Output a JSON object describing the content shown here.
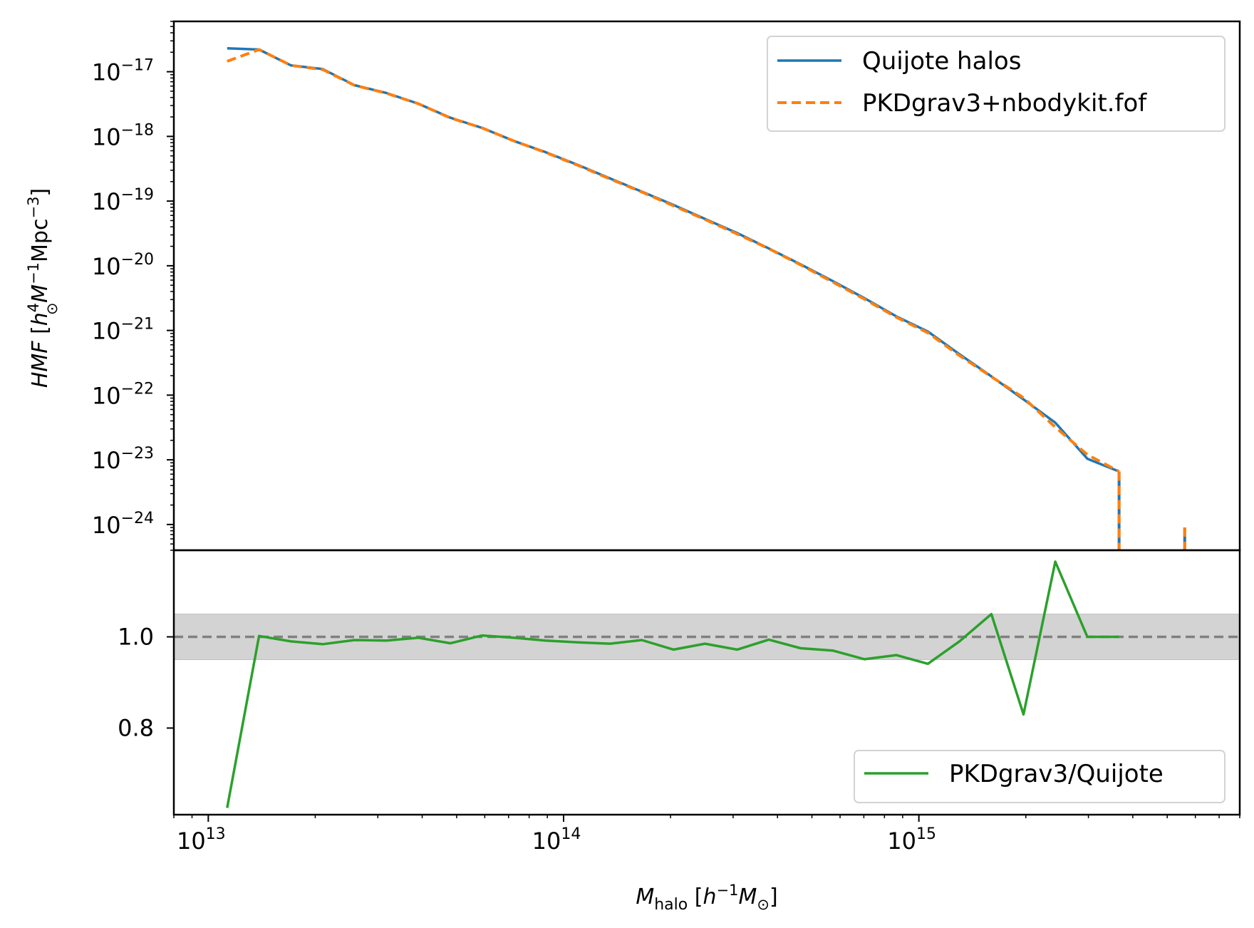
{
  "chart_data": [
    {
      "type": "line",
      "panel": "top",
      "xscale": "log",
      "yscale": "log",
      "xlim": [
        8000000000000.0,
        8000000000000000.0
      ],
      "ylim": [
        4e-25,
        6e-17
      ],
      "y_ticks": [
        1e-17,
        1e-18,
        1e-19,
        1e-20,
        1e-21,
        1e-22,
        1e-23,
        1e-24
      ],
      "y_tick_labels": [
        {
          "base": "10",
          "exp": "−17"
        },
        {
          "base": "10",
          "exp": "−18"
        },
        {
          "base": "10",
          "exp": "−19"
        },
        {
          "base": "10",
          "exp": "−20"
        },
        {
          "base": "10",
          "exp": "−21"
        },
        {
          "base": "10",
          "exp": "−22"
        },
        {
          "base": "10",
          "exp": "−23"
        },
        {
          "base": "10",
          "exp": "−24"
        }
      ],
      "ylabel": {
        "italic": "HMF",
        "pre": " [",
        "h": "h",
        "h_exp": "4",
        "M": "M",
        "sun": "⊙",
        "M_exp": "−1",
        "mpc": "Mpc",
        "mpc_exp": "−3",
        "close": "]"
      },
      "legend_position": "upper right",
      "series": [
        {
          "name": "Quijote halos",
          "color": "#1f77b4",
          "style": "solid",
          "x": [
            11300000000000.0,
            13900000000000.0,
            17100000000000.0,
            21000000000000.0,
            25800000000000.0,
            31700000000000.0,
            39000000000000.0,
            48000000000000.0,
            59000000000000.0,
            72500000000000.0,
            89000000000000.0,
            110000000000000.0,
            135000000000000.0,
            166000000000000.0,
            204000000000000.0,
            250000000000000.0,
            308000000000000.0,
            378000000000000.0,
            465000000000000.0,
            572000000000000.0,
            703000000000000.0,
            864000000000000.0,
            1060000000000000.0,
            1300000000000000.0,
            1600000000000000.0,
            1970000000000000.0,
            2420000000000000.0,
            2980000000000000.0,
            3660000000000000.0
          ],
          "y": [
            2.3e-17,
            2.2e-17,
            1.25e-17,
            1.1e-17,
            6.2e-18,
            4.7e-18,
            3.2e-18,
            1.95e-18,
            1.35e-18,
            8.5e-19,
            5.7e-19,
            3.6e-19,
            2.25e-19,
            1.4e-19,
            8.7e-20,
            5.3e-20,
            3.2e-20,
            1.85e-20,
            1.05e-20,
            5.8e-21,
            3.15e-21,
            1.65e-21,
            9.6e-22,
            4.3e-22,
            1.95e-22,
            8.6e-23,
            3.75e-23,
            1.04e-23,
            6.6e-24
          ]
        },
        {
          "name": "PKDgrav3+nbodykit.fof",
          "color": "#ff7f0e",
          "style": "dashed",
          "x": [
            11300000000000.0,
            13900000000000.0,
            17100000000000.0,
            21000000000000.0,
            25800000000000.0,
            31700000000000.0,
            39000000000000.0,
            48000000000000.0,
            59000000000000.0,
            72500000000000.0,
            89000000000000.0,
            110000000000000.0,
            135000000000000.0,
            166000000000000.0,
            204000000000000.0,
            250000000000000.0,
            308000000000000.0,
            378000000000000.0,
            465000000000000.0,
            572000000000000.0,
            703000000000000.0,
            864000000000000.0,
            1060000000000000.0,
            1300000000000000.0,
            1600000000000000.0,
            1970000000000000.0,
            2420000000000000.0,
            2980000000000000.0,
            3660000000000000.0
          ],
          "y": [
            1.45e-17,
            2.2e-17,
            1.25e-17,
            1.08e-17,
            6.15e-18,
            4.65e-18,
            3.2e-18,
            1.93e-18,
            1.35e-18,
            8.5e-19,
            5.65e-19,
            3.55e-19,
            2.2e-19,
            1.38e-19,
            8.45e-20,
            5.2e-20,
            3.1e-20,
            1.84e-20,
            1.03e-20,
            5.6e-21,
            3.05e-21,
            1.6e-21,
            9.2e-22,
            4.1e-22,
            1.93e-22,
            9.1e-23,
            3.2e-23,
            1.2e-23,
            6.6e-24
          ]
        }
      ],
      "drop_lines": [
        {
          "x": 3660000000000000.0,
          "y_top": 6.6e-24
        },
        {
          "x": 5600000000000000.0,
          "y_top": 9e-25
        }
      ]
    },
    {
      "type": "line",
      "panel": "bottom",
      "xscale": "log",
      "xlim": [
        8000000000000.0,
        8000000000000000.0
      ],
      "ylim": [
        0.61,
        1.19
      ],
      "x_ticks": [
        10000000000000.0,
        100000000000000.0,
        1000000000000000.0
      ],
      "x_tick_labels": [
        {
          "base": "10",
          "exp": "13"
        },
        {
          "base": "10",
          "exp": "14"
        },
        {
          "base": "10",
          "exp": "15"
        }
      ],
      "y_ticks": [
        0.8,
        1.0
      ],
      "y_tick_labels": [
        "0.8",
        "1.0"
      ],
      "xlabel": {
        "M": "M",
        "sub": "halo",
        "pre": " [",
        "h": "h",
        "h_exp": "−1",
        "M2": "M",
        "sun": "⊙",
        "close": "]"
      },
      "legend_position": "lower right",
      "reference_line": {
        "y": 1.0,
        "color": "#808080",
        "style": "dashed"
      },
      "band": {
        "y0": 0.95,
        "y1": 1.05,
        "color": "#d3d3d3"
      },
      "series": [
        {
          "name": "PKDgrav3/Quijote",
          "color": "#2ca02c",
          "style": "solid",
          "x": [
            11300000000000.0,
            13900000000000.0,
            17100000000000.0,
            21000000000000.0,
            25800000000000.0,
            31700000000000.0,
            39000000000000.0,
            48000000000000.0,
            59000000000000.0,
            72500000000000.0,
            89000000000000.0,
            110000000000000.0,
            135000000000000.0,
            166000000000000.0,
            204000000000000.0,
            250000000000000.0,
            308000000000000.0,
            378000000000000.0,
            465000000000000.0,
            572000000000000.0,
            703000000000000.0,
            864000000000000.0,
            1060000000000000.0,
            1300000000000000.0,
            1600000000000000.0,
            1970000000000000.0,
            2420000000000000.0,
            2980000000000000.0,
            3660000000000000.0
          ],
          "y": [
            0.625,
            1.002,
            0.99,
            0.984,
            0.993,
            0.992,
            0.998,
            0.986,
            1.003,
            0.998,
            0.992,
            0.988,
            0.985,
            0.993,
            0.972,
            0.985,
            0.972,
            0.994,
            0.975,
            0.97,
            0.951,
            0.96,
            0.941,
            0.99,
            1.05,
            0.83,
            1.165,
            1.0,
            1.0
          ]
        }
      ]
    }
  ]
}
